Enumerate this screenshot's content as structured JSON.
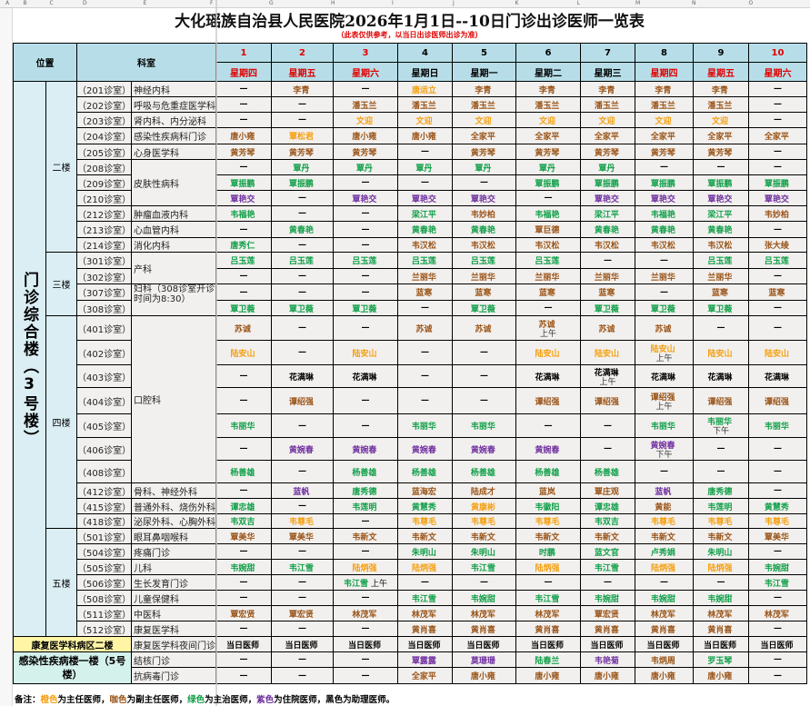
{
  "sheet": {
    "columns": [
      "A",
      "B",
      "C",
      "D",
      "E",
      "F",
      "G",
      "H",
      "I",
      "J",
      "K",
      "L",
      "M",
      "N",
      "O"
    ]
  },
  "title": "大化瑶族自治县人民医院2026年1月1日--10日门诊出诊医师一览表",
  "subtitle": "（此表仅供参考，以当日出诊医师出诊为准）",
  "header": {
    "position": "位置",
    "department": "科室",
    "days": [
      {
        "num": "1",
        "weekday": "星期四",
        "num_red": true,
        "weekday_red": true
      },
      {
        "num": "2",
        "weekday": "星期五",
        "num_red": true,
        "weekday_red": true
      },
      {
        "num": "3",
        "weekday": "星期六",
        "num_red": true,
        "weekday_red": true
      },
      {
        "num": "4",
        "weekday": "星期日",
        "num_red": false,
        "weekday_red": false
      },
      {
        "num": "5",
        "weekday": "星期一",
        "num_red": false,
        "weekday_red": false
      },
      {
        "num": "6",
        "weekday": "星期二",
        "num_red": false,
        "weekday_red": false
      },
      {
        "num": "7",
        "weekday": "星期三",
        "num_red": false,
        "weekday_red": false
      },
      {
        "num": "8",
        "weekday": "星期四",
        "num_red": false,
        "weekday_red": true
      },
      {
        "num": "9",
        "weekday": "星期五",
        "num_red": false,
        "weekday_red": true
      },
      {
        "num": "10",
        "weekday": "星期六",
        "num_red": true,
        "weekday_red": true
      }
    ]
  },
  "ranks": {
    "o": {
      "label": "主任医师",
      "color": "#f5a010"
    },
    "b": {
      "label": "副主任医师",
      "color": "#9a5418"
    },
    "g": {
      "label": "主治医师",
      "color": "#12a04a"
    },
    "p": {
      "label": "住院医师",
      "color": "#7030a0"
    },
    "k": {
      "label": "助理医师",
      "color": "#000000"
    }
  },
  "building": {
    "name": "门诊综合楼（3号楼）",
    "floors": [
      {
        "name": "二楼",
        "depts": [
          {
            "name": "神经内科",
            "rooms": [
              {
                "room": "（201诊室）",
                "doctors": [
                  "—",
                  "李青|b",
                  "—",
                  "唐运立|o",
                  "李青|b",
                  "李青|b",
                  "李青|b",
                  "李青|b",
                  "李青|b",
                  "—"
                ]
              }
            ]
          },
          {
            "name": "呼吸与危重症医学科",
            "rooms": [
              {
                "room": "（202诊室）",
                "doctors": [
                  "—",
                  "—",
                  "潘玉兰|b",
                  "潘玉兰|b",
                  "潘玉兰|b",
                  "潘玉兰|b",
                  "潘玉兰|b",
                  "潘玉兰|b",
                  "潘玉兰|b",
                  "—"
                ]
              }
            ]
          },
          {
            "name": "肾内科、内分泌科",
            "rooms": [
              {
                "room": "（203诊室）",
                "doctors": [
                  "—",
                  "—",
                  "文迎|o",
                  "文迎|o",
                  "文迎|o",
                  "文迎|o",
                  "文迎|o",
                  "文迎|o",
                  "文迎|o",
                  "—"
                ]
              }
            ]
          },
          {
            "name": "感染性疾病科门诊",
            "rooms": [
              {
                "room": "（204诊室）",
                "doctors": [
                  "唐小雍|b",
                  "覃松君|o",
                  "唐小雍|b",
                  "唐小雍|b",
                  "全家平|b",
                  "全家平|b",
                  "全家平|b",
                  "全家平|b",
                  "全家平|b",
                  "全家平|b"
                ]
              }
            ]
          },
          {
            "name": "心身医学科",
            "rooms": [
              {
                "room": "（205诊室）",
                "doctors": [
                  "黄芳琴|b",
                  "黄芳琴|b",
                  "黄芳琴|b",
                  "—",
                  "黄芳琴|b",
                  "黄芳琴|b",
                  "黄芳琴|b",
                  "黄芳琴|b",
                  "黄芳琴|b",
                  "—"
                ]
              }
            ]
          },
          {
            "name": "皮肤性病科",
            "rooms": [
              {
                "room": "（208诊室）",
                "doctors": [
                  "—",
                  "覃丹|g",
                  "覃丹|g",
                  "覃丹|g",
                  "覃丹|g",
                  "覃丹|g",
                  "覃丹|g",
                  "—",
                  "—",
                  "—"
                ]
              },
              {
                "room": "（209诊室）",
                "doctors": [
                  "覃振鹏|g",
                  "覃振鹏|g",
                  "—",
                  "—",
                  "—",
                  "覃振鹏|g",
                  "覃振鹏|g",
                  "覃振鹏|g",
                  "覃振鹏|g",
                  "覃振鹏|g"
                ]
              },
              {
                "room": "（210诊室）",
                "doctors": [
                  "覃艳交|p",
                  "—",
                  "覃艳交|p",
                  "覃艳交|p",
                  "覃艳交|p",
                  "—",
                  "覃艳交|p",
                  "覃艳交|p",
                  "覃艳交|p",
                  "覃艳交|p"
                ]
              }
            ]
          },
          {
            "name": "肿瘤血液内科",
            "rooms": [
              {
                "room": "（212诊室）",
                "doctors": [
                  "韦福艳|g",
                  "—",
                  "—",
                  "梁江平|g",
                  "韦妙柏|b",
                  "韦福艳|g",
                  "梁江平|g",
                  "韦福艳|g",
                  "梁江平|g",
                  "韦妙柏|b"
                ]
              }
            ]
          },
          {
            "name": "心血管内科",
            "rooms": [
              {
                "room": "（213诊室）",
                "doctors": [
                  "—",
                  "黄春艳|g",
                  "—",
                  "黄春艳|g",
                  "黄春艳|g",
                  "覃巨德|b",
                  "黄春艳|g",
                  "黄春艳|g",
                  "黄春艳|g",
                  "—"
                ]
              }
            ]
          },
          {
            "name": "消化内科",
            "rooms": [
              {
                "room": "（214诊室）",
                "doctors": [
                  "唐秀仁|g",
                  "—",
                  "—",
                  "韦汉松|b",
                  "韦汉松|b",
                  "韦汉松|b",
                  "韦汉松|b",
                  "韦汉松|b",
                  "韦汉松|b",
                  "张大绫|b"
                ]
              }
            ]
          }
        ]
      },
      {
        "name": "三楼",
        "depts": [
          {
            "name": "产科",
            "rooms": [
              {
                "room": "（301诊室）",
                "doctors": [
                  "吕玉莲|g",
                  "吕玉莲|g",
                  "吕玉莲|g",
                  "吕玉莲|g",
                  "吕玉莲|g",
                  "吕玉莲|g",
                  "—",
                  "—",
                  "吕玉莲|g",
                  "吕玉莲|g"
                ]
              },
              {
                "room": "（302诊室）",
                "doctors": [
                  "—",
                  "—",
                  "—",
                  "兰丽华|b",
                  "兰丽华|b",
                  "兰丽华|b",
                  "兰丽华|b",
                  "兰丽华|b",
                  "兰丽华|b",
                  "—"
                ]
              }
            ]
          },
          {
            "name": "妇科（308诊室开诊时间为8:30）",
            "rooms": [
              {
                "room": "（307诊室）",
                "doctors": [
                  "—",
                  "—",
                  "—",
                  "蓝寒|b",
                  "蓝寒|b",
                  "蓝寒|b",
                  "蓝寒|b",
                  "—",
                  "蓝寒|b",
                  "蓝寒|b"
                ]
              },
              {
                "room": "（308诊室）",
                "doctors": [
                  "覃卫薇|g",
                  "覃卫薇|g",
                  "覃卫薇|g",
                  "—",
                  "覃卫薇|g",
                  "—",
                  "覃卫薇|g",
                  "覃卫薇|g",
                  "覃卫薇|g",
                  "—"
                ]
              }
            ]
          }
        ]
      },
      {
        "name": "四楼",
        "depts": [
          {
            "name": "口腔科",
            "rooms": [
              {
                "room": "（401诊室）",
                "doctors": [
                  "苏诚|b",
                  "—",
                  "—",
                  "苏诚|b",
                  "苏诚|b",
                  "苏诚|b|上午",
                  "苏诚|b",
                  "苏诚|b",
                  "—",
                  "—"
                ]
              },
              {
                "room": "（402诊室）",
                "doctors": [
                  "陆安山|o",
                  "—",
                  "陆安山|o",
                  "—",
                  "—",
                  "陆安山|o",
                  "陆安山|o",
                  "陆安山|o|上午",
                  "陆安山|o",
                  "陆安山|o"
                ]
              },
              {
                "room": "（403诊室）",
                "doctors": [
                  "—",
                  "花满琳|k",
                  "花满琳|k",
                  "—",
                  "—",
                  "花满琳|k",
                  "花满琳|k|上午",
                  "花满琳|k",
                  "花满琳|k",
                  "花满琳|k"
                ]
              },
              {
                "room": "（404诊室）",
                "doctors": [
                  "—",
                  "谭绍强|b",
                  "—",
                  "—",
                  "—",
                  "谭绍强|b",
                  "谭绍强|b",
                  "谭绍强|b|上午",
                  "谭绍强|b",
                  "谭绍强|b"
                ]
              },
              {
                "room": "（405诊室）",
                "doctors": [
                  "韦丽华|g",
                  "—",
                  "—",
                  "韦丽华|g",
                  "韦丽华|g",
                  "—",
                  "—",
                  "韦丽华|g",
                  "韦丽华|g|下午",
                  "韦丽华|g"
                ]
              },
              {
                "room": "（406诊室）",
                "doctors": [
                  "—",
                  "黄婉春|p",
                  "黄婉春|p",
                  "黄婉春|p",
                  "黄婉春|p",
                  "黄婉春|p",
                  "—",
                  "黄婉春|p|下午",
                  "—",
                  "—"
                ]
              },
              {
                "room": "（408诊室）",
                "doctors": [
                  "杨善雄|g",
                  "—",
                  "杨善雄|g",
                  "杨善雄|g",
                  "杨善雄|g",
                  "杨善雄|g",
                  "杨善雄|g",
                  "—",
                  "—",
                  "—"
                ]
              }
            ]
          },
          {
            "name": "骨科、神经外科",
            "rooms": [
              {
                "room": "（412诊室）",
                "doctors": [
                  "—",
                  "蓝帆|p",
                  "唐秀德|g",
                  "蓝海宏|b",
                  "陆成才|b",
                  "蓝岚|b",
                  "覃庄观|b",
                  "蓝帆|p",
                  "唐秀德|g",
                  "—"
                ]
              }
            ]
          },
          {
            "name": "普通外科、烧伤外科",
            "rooms": [
              {
                "room": "（415诊室）",
                "doctors": [
                  "谭忠雄|g",
                  "—",
                  "韦莲明|g",
                  "黄慧秀|g",
                  "黄康彬|o",
                  "韦徽阳|g",
                  "谭忠雄|g",
                  "黄能|b",
                  "韦莲明|g",
                  "黄慧秀|g"
                ]
              }
            ]
          },
          {
            "name": "泌尿外科、心胸外科",
            "rooms": [
              {
                "room": "（418诊室）",
                "doctors": [
                  "韦双吉|g",
                  "韦尊毛|o",
                  "—",
                  "韦尊毛|o",
                  "韦尊毛|o",
                  "韦尊毛|o",
                  "韦双吉|g",
                  "韦尊毛|o",
                  "韦尊毛|o",
                  "韦尊毛|o"
                ]
              }
            ]
          }
        ]
      },
      {
        "name": "五楼",
        "depts": [
          {
            "name": "眼耳鼻咽喉科",
            "rooms": [
              {
                "room": "（501诊室）",
                "doctors": [
                  "覃美华|b",
                  "覃美华|b",
                  "韦新文|b",
                  "韦新文|b",
                  "韦新文|b",
                  "韦新文|b",
                  "韦新文|b",
                  "韦新文|b",
                  "韦新文|b",
                  "覃美华|b"
                ]
              }
            ]
          },
          {
            "name": "疼痛门诊",
            "rooms": [
              {
                "room": "（504诊室）",
                "doctors": [
                  "—",
                  "—",
                  "—",
                  "朱明山|g",
                  "朱明山|g",
                  "时鹏|g",
                  "蓝文官|g",
                  "卢秀娟|g",
                  "朱明山|g",
                  "—"
                ]
              }
            ]
          },
          {
            "name": "儿科",
            "rooms": [
              {
                "room": "（505诊室）",
                "doctors": [
                  "韦婉甜|g",
                  "韦江雪|g",
                  "陆炳强|o",
                  "陆炳强|o",
                  "韦江雪|g",
                  "陆炳强|o",
                  "韦江雪|g",
                  "陆炳强|o",
                  "陆炳强|o",
                  "韦婉甜|g"
                ]
              }
            ]
          },
          {
            "name": "生长发育门诊",
            "rooms": [
              {
                "room": "（506诊室）",
                "doctors": [
                  "—",
                  "—",
                  "韦江雪|g|上午",
                  "—",
                  "—",
                  "—",
                  "—",
                  "—",
                  "—",
                  "韦江雪|g"
                ]
              }
            ]
          },
          {
            "name": "儿童保健科",
            "rooms": [
              {
                "room": "（508诊室）",
                "doctors": [
                  "—",
                  "—",
                  "—",
                  "韦江雪|g",
                  "韦婉甜|g",
                  "韦江雪|g",
                  "韦婉甜|g",
                  "韦婉甜|g",
                  "韦婉甜|g",
                  "—"
                ]
              }
            ]
          },
          {
            "name": "中医科",
            "rooms": [
              {
                "room": "（511诊室）",
                "doctors": [
                  "覃宏贤|b",
                  "覃宏贤|b",
                  "林茂军|b",
                  "林茂军|b",
                  "林茂军|b",
                  "林茂军|b",
                  "覃宏贤|b",
                  "林茂军|b",
                  "林茂军|b",
                  "林茂军|b"
                ]
              }
            ]
          },
          {
            "name": "康复医学科",
            "rooms": [
              {
                "room": "（512诊室）",
                "doctors": [
                  "—",
                  "—",
                  "—",
                  "黄肖喜|b",
                  "黄肖喜|b",
                  "黄肖喜|b",
                  "黄肖喜|b",
                  "黄肖喜|b",
                  "黄肖喜|b",
                  "—"
                ]
              }
            ]
          }
        ]
      }
    ]
  },
  "extra": [
    {
      "location": "康复医学科病区二楼",
      "style": "yellow",
      "rows": [
        {
          "dept": "康复医学科夜间门诊",
          "doctors": [
            "当日医师|k",
            "当日医师|k",
            "当日医师|k",
            "当日医师|k",
            "当日医师|k",
            "当日医师|k",
            "当日医师|k",
            "当日医师|k",
            "当日医师|k",
            "当日医师|k"
          ]
        }
      ]
    },
    {
      "location": "感染性疾病楼一楼（5号楼）",
      "style": "teal",
      "rows": [
        {
          "dept": "结核门诊",
          "doctors": [
            "—",
            "—",
            "—",
            "覃露露|p",
            "莫珊珊|p",
            "陆春兰|g",
            "韦艳菊|p",
            "韦炳周|b",
            "罗玉琴|g",
            "—"
          ]
        },
        {
          "dept": "抗病毒门诊",
          "doctors": [
            "—",
            "—",
            "—",
            "全家平|b",
            "唐小雍|b",
            "唐小雍|b",
            "唐小雍|b",
            "唐小雍|b",
            "唐小雍|b",
            "—"
          ]
        }
      ]
    }
  ],
  "footer": [
    {
      "text": "备注：",
      "color": "#000000"
    },
    {
      "text": "橙色",
      "color": "#f5a010"
    },
    {
      "text": "为主任医师，",
      "color": "#000000"
    },
    {
      "text": "咖色",
      "color": "#9a5418"
    },
    {
      "text": "为副主任医师，",
      "color": "#000000"
    },
    {
      "text": "绿色",
      "color": "#12a04a"
    },
    {
      "text": "为主治医师，",
      "color": "#000000"
    },
    {
      "text": "紫色",
      "color": "#7030a0"
    },
    {
      "text": "为住院医师，",
      "color": "#000000"
    },
    {
      "text": "黑色为助理医师。",
      "color": "#000000"
    }
  ]
}
